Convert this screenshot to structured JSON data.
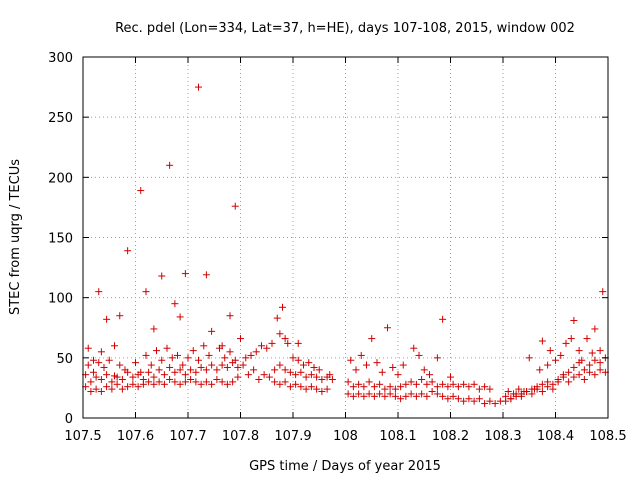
{
  "chart_data": {
    "type": "scatter",
    "title": "Rec. pdel (Lon=334, Lat=37, h=HE), days 107-108, 2015, window 002",
    "xlabel": "GPS time / Days of year 2015",
    "ylabel": "STEC from uqrg / TECUs",
    "xlim": [
      107.5,
      108.5
    ],
    "ylim": [
      0,
      300
    ],
    "xticks": [
      107.5,
      107.6,
      107.7,
      107.8,
      107.9,
      108,
      108.1,
      108.2,
      108.3,
      108.4,
      108.5
    ],
    "xtick_labels": [
      "107.5",
      "107.6",
      "107.7",
      "107.8",
      "107.9",
      "108",
      "108.1",
      "108.2",
      "108.3",
      "108.4",
      "108.5"
    ],
    "yticks": [
      0,
      50,
      100,
      150,
      200,
      250,
      300
    ],
    "ytick_labels": [
      "0",
      "50",
      "100",
      "150",
      "200",
      "250",
      "300"
    ],
    "grid": true,
    "marker": "+",
    "series_color": "#d00000",
    "series": [
      {
        "name": "STEC",
        "points": [
          [
            107.51,
            58
          ],
          [
            107.52,
            48
          ],
          [
            107.53,
            105
          ],
          [
            107.535,
            55
          ],
          [
            107.545,
            82
          ],
          [
            107.56,
            60
          ],
          [
            107.57,
            85
          ],
          [
            107.585,
            139
          ],
          [
            107.61,
            189
          ],
          [
            107.62,
            105
          ],
          [
            107.635,
            74
          ],
          [
            107.65,
            118
          ],
          [
            107.665,
            210
          ],
          [
            107.675,
            95
          ],
          [
            107.685,
            84
          ],
          [
            107.695,
            120
          ],
          [
            107.72,
            275
          ],
          [
            107.735,
            119
          ],
          [
            107.745,
            72
          ],
          [
            107.765,
            60
          ],
          [
            107.78,
            85
          ],
          [
            107.79,
            176
          ],
          [
            107.8,
            66
          ],
          [
            107.84,
            60
          ],
          [
            107.87,
            83
          ],
          [
            107.88,
            92
          ],
          [
            107.89,
            62
          ],
          [
            107.91,
            62
          ],
          [
            107.93,
            46
          ],
          [
            107.51,
            44
          ],
          [
            107.52,
            38
          ],
          [
            107.53,
            46
          ],
          [
            107.54,
            42
          ],
          [
            107.55,
            48
          ],
          [
            107.56,
            35
          ],
          [
            107.57,
            44
          ],
          [
            107.58,
            40
          ],
          [
            107.6,
            46
          ],
          [
            107.61,
            38
          ],
          [
            107.62,
            52
          ],
          [
            107.63,
            44
          ],
          [
            107.64,
            56
          ],
          [
            107.65,
            48
          ],
          [
            107.66,
            58
          ],
          [
            107.67,
            50
          ],
          [
            107.68,
            52
          ],
          [
            107.69,
            44
          ],
          [
            107.7,
            50
          ],
          [
            107.71,
            56
          ],
          [
            107.72,
            48
          ],
          [
            107.73,
            60
          ],
          [
            107.74,
            52
          ],
          [
            107.76,
            58
          ],
          [
            107.77,
            50
          ],
          [
            107.78,
            55
          ],
          [
            107.79,
            48
          ],
          [
            107.81,
            50
          ],
          [
            107.82,
            52
          ],
          [
            107.83,
            55
          ],
          [
            107.85,
            58
          ],
          [
            107.86,
            62
          ],
          [
            107.875,
            70
          ],
          [
            107.885,
            66
          ],
          [
            107.9,
            50
          ],
          [
            107.91,
            48
          ],
          [
            107.92,
            44
          ],
          [
            107.94,
            42
          ],
          [
            107.95,
            40
          ],
          [
            107.97,
            36
          ],
          [
            107.505,
            36
          ],
          [
            107.515,
            30
          ],
          [
            107.525,
            34
          ],
          [
            107.535,
            32
          ],
          [
            107.545,
            36
          ],
          [
            107.555,
            30
          ],
          [
            107.565,
            34
          ],
          [
            107.575,
            32
          ],
          [
            107.585,
            38
          ],
          [
            107.595,
            34
          ],
          [
            107.605,
            36
          ],
          [
            107.615,
            32
          ],
          [
            107.625,
            38
          ],
          [
            107.635,
            34
          ],
          [
            107.645,
            40
          ],
          [
            107.655,
            36
          ],
          [
            107.665,
            42
          ],
          [
            107.675,
            38
          ],
          [
            107.685,
            40
          ],
          [
            107.695,
            36
          ],
          [
            107.705,
            40
          ],
          [
            107.715,
            38
          ],
          [
            107.725,
            42
          ],
          [
            107.735,
            40
          ],
          [
            107.745,
            44
          ],
          [
            107.755,
            40
          ],
          [
            107.765,
            44
          ],
          [
            107.775,
            42
          ],
          [
            107.785,
            46
          ],
          [
            107.795,
            42
          ],
          [
            107.805,
            44
          ],
          [
            107.825,
            40
          ],
          [
            107.845,
            36
          ],
          [
            107.865,
            40
          ],
          [
            107.875,
            44
          ],
          [
            107.885,
            40
          ],
          [
            107.895,
            38
          ],
          [
            107.905,
            36
          ],
          [
            107.915,
            38
          ],
          [
            107.925,
            34
          ],
          [
            107.935,
            36
          ],
          [
            107.945,
            34
          ],
          [
            107.955,
            32
          ],
          [
            107.965,
            34
          ],
          [
            107.975,
            32
          ],
          [
            107.505,
            26
          ],
          [
            107.515,
            22
          ],
          [
            107.525,
            24
          ],
          [
            107.535,
            22
          ],
          [
            107.545,
            26
          ],
          [
            107.555,
            24
          ],
          [
            107.565,
            28
          ],
          [
            107.575,
            24
          ],
          [
            107.585,
            26
          ],
          [
            107.595,
            28
          ],
          [
            107.605,
            26
          ],
          [
            107.615,
            28
          ],
          [
            107.625,
            30
          ],
          [
            107.635,
            28
          ],
          [
            107.645,
            30
          ],
          [
            107.655,
            28
          ],
          [
            107.665,
            32
          ],
          [
            107.675,
            30
          ],
          [
            107.685,
            28
          ],
          [
            107.695,
            30
          ],
          [
            107.705,
            32
          ],
          [
            107.715,
            30
          ],
          [
            107.725,
            28
          ],
          [
            107.735,
            30
          ],
          [
            107.745,
            28
          ],
          [
            107.755,
            32
          ],
          [
            107.765,
            30
          ],
          [
            107.775,
            28
          ],
          [
            107.785,
            30
          ],
          [
            107.795,
            34
          ],
          [
            107.815,
            36
          ],
          [
            107.835,
            32
          ],
          [
            107.855,
            34
          ],
          [
            107.865,
            30
          ],
          [
            107.875,
            28
          ],
          [
            107.885,
            30
          ],
          [
            107.895,
            26
          ],
          [
            107.905,
            28
          ],
          [
            107.915,
            26
          ],
          [
            107.925,
            24
          ],
          [
            107.935,
            26
          ],
          [
            107.945,
            24
          ],
          [
            107.955,
            22
          ],
          [
            107.965,
            24
          ],
          [
            108.01,
            48
          ],
          [
            108.02,
            40
          ],
          [
            108.03,
            52
          ],
          [
            108.04,
            44
          ],
          [
            108.05,
            66
          ],
          [
            108.06,
            46
          ],
          [
            108.07,
            38
          ],
          [
            108.08,
            75
          ],
          [
            108.09,
            42
          ],
          [
            108.1,
            36
          ],
          [
            108.11,
            44
          ],
          [
            108.13,
            58
          ],
          [
            108.14,
            52
          ],
          [
            108.15,
            40
          ],
          [
            108.16,
            36
          ],
          [
            108.175,
            50
          ],
          [
            108.185,
            82
          ],
          [
            108.2,
            34
          ],
          [
            108.005,
            30
          ],
          [
            108.015,
            26
          ],
          [
            108.025,
            28
          ],
          [
            108.035,
            26
          ],
          [
            108.045,
            30
          ],
          [
            108.055,
            26
          ],
          [
            108.065,
            28
          ],
          [
            108.075,
            24
          ],
          [
            108.085,
            26
          ],
          [
            108.095,
            24
          ],
          [
            108.105,
            26
          ],
          [
            108.115,
            28
          ],
          [
            108.125,
            30
          ],
          [
            108.135,
            28
          ],
          [
            108.145,
            32
          ],
          [
            108.155,
            28
          ],
          [
            108.165,
            30
          ],
          [
            108.175,
            26
          ],
          [
            108.185,
            28
          ],
          [
            108.195,
            26
          ],
          [
            108.205,
            28
          ],
          [
            108.215,
            26
          ],
          [
            108.225,
            28
          ],
          [
            108.235,
            26
          ],
          [
            108.245,
            28
          ],
          [
            108.255,
            24
          ],
          [
            108.265,
            26
          ],
          [
            108.275,
            24
          ],
          [
            108.005,
            20
          ],
          [
            108.015,
            18
          ],
          [
            108.025,
            20
          ],
          [
            108.035,
            18
          ],
          [
            108.045,
            20
          ],
          [
            108.055,
            18
          ],
          [
            108.065,
            20
          ],
          [
            108.075,
            18
          ],
          [
            108.085,
            20
          ],
          [
            108.095,
            18
          ],
          [
            108.105,
            16
          ],
          [
            108.115,
            18
          ],
          [
            108.125,
            20
          ],
          [
            108.135,
            18
          ],
          [
            108.145,
            20
          ],
          [
            108.155,
            18
          ],
          [
            108.165,
            22
          ],
          [
            108.175,
            20
          ],
          [
            108.185,
            18
          ],
          [
            108.195,
            16
          ],
          [
            108.205,
            18
          ],
          [
            108.215,
            16
          ],
          [
            108.225,
            14
          ],
          [
            108.235,
            16
          ],
          [
            108.245,
            14
          ],
          [
            108.255,
            16
          ],
          [
            108.265,
            12
          ],
          [
            108.275,
            14
          ],
          [
            108.285,
            12
          ],
          [
            108.295,
            14
          ],
          [
            108.31,
            22
          ],
          [
            108.32,
            20
          ],
          [
            108.33,
            24
          ],
          [
            108.34,
            22
          ],
          [
            108.35,
            50
          ],
          [
            108.36,
            24
          ],
          [
            108.37,
            40
          ],
          [
            108.375,
            64
          ],
          [
            108.385,
            44
          ],
          [
            108.39,
            56
          ],
          [
            108.4,
            48
          ],
          [
            108.41,
            52
          ],
          [
            108.42,
            62
          ],
          [
            108.43,
            66
          ],
          [
            108.435,
            81
          ],
          [
            108.445,
            56
          ],
          [
            108.45,
            48
          ],
          [
            108.46,
            66
          ],
          [
            108.47,
            54
          ],
          [
            108.475,
            74
          ],
          [
            108.485,
            56
          ],
          [
            108.49,
            105
          ],
          [
            108.305,
            18
          ],
          [
            108.315,
            16
          ],
          [
            108.325,
            20
          ],
          [
            108.335,
            18
          ],
          [
            108.345,
            22
          ],
          [
            108.355,
            20
          ],
          [
            108.365,
            24
          ],
          [
            108.375,
            22
          ],
          [
            108.385,
            26
          ],
          [
            108.395,
            24
          ],
          [
            108.405,
            30
          ],
          [
            108.415,
            34
          ],
          [
            108.425,
            38
          ],
          [
            108.435,
            42
          ],
          [
            108.445,
            46
          ],
          [
            108.455,
            40
          ],
          [
            108.465,
            44
          ],
          [
            108.475,
            48
          ],
          [
            108.485,
            46
          ],
          [
            108.495,
            50
          ],
          [
            108.305,
            14
          ],
          [
            108.315,
            16
          ],
          [
            108.325,
            18
          ],
          [
            108.335,
            20
          ],
          [
            108.345,
            22
          ],
          [
            108.355,
            24
          ],
          [
            108.365,
            26
          ],
          [
            108.375,
            28
          ],
          [
            108.385,
            30
          ],
          [
            108.395,
            28
          ],
          [
            108.405,
            32
          ],
          [
            108.415,
            36
          ],
          [
            108.425,
            30
          ],
          [
            108.435,
            34
          ],
          [
            108.445,
            36
          ],
          [
            108.455,
            32
          ],
          [
            108.465,
            38
          ],
          [
            108.475,
            36
          ],
          [
            108.485,
            40
          ],
          [
            108.495,
            38
          ]
        ]
      }
    ]
  }
}
